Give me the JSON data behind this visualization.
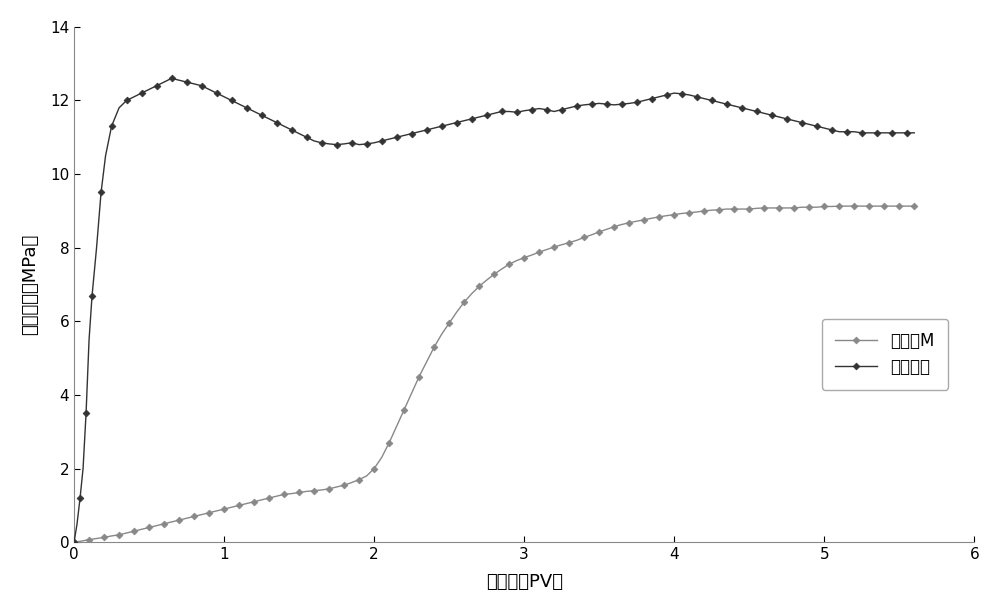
{
  "series1_label": "注菌种M",
  "series2_label": "后续水驱",
  "xlabel": "注入量（PV）",
  "ylabel": "注入压力（MPa）",
  "xlim": [
    0,
    6
  ],
  "ylim": [
    0,
    14
  ],
  "xticks": [
    0,
    1,
    2,
    3,
    4,
    5,
    6
  ],
  "yticks": [
    0,
    2,
    4,
    6,
    8,
    10,
    12,
    14
  ],
  "series1_color": "#888888",
  "series2_color": "#333333",
  "series1_x": [
    0.0,
    0.05,
    0.1,
    0.15,
    0.2,
    0.25,
    0.3,
    0.35,
    0.4,
    0.45,
    0.5,
    0.55,
    0.6,
    0.65,
    0.7,
    0.75,
    0.8,
    0.85,
    0.9,
    0.95,
    1.0,
    1.05,
    1.1,
    1.15,
    1.2,
    1.25,
    1.3,
    1.35,
    1.4,
    1.45,
    1.5,
    1.55,
    1.6,
    1.65,
    1.7,
    1.75,
    1.8,
    1.85,
    1.9,
    1.95,
    2.0,
    2.05,
    2.1,
    2.15,
    2.2,
    2.25,
    2.3,
    2.35,
    2.4,
    2.45,
    2.5,
    2.55,
    2.6,
    2.65,
    2.7,
    2.75,
    2.8,
    2.85,
    2.9,
    2.95,
    3.0,
    3.05,
    3.1,
    3.15,
    3.2,
    3.25,
    3.3,
    3.35,
    3.4,
    3.45,
    3.5,
    3.55,
    3.6,
    3.65,
    3.7,
    3.75,
    3.8,
    3.85,
    3.9,
    3.95,
    4.0,
    4.05,
    4.1,
    4.15,
    4.2,
    4.25,
    4.3,
    4.35,
    4.4,
    4.45,
    4.5,
    4.55,
    4.6,
    4.65,
    4.7,
    4.75,
    4.8,
    4.85,
    4.9,
    4.95,
    5.0,
    5.05,
    5.1,
    5.15,
    5.2,
    5.25,
    5.3,
    5.35,
    5.4,
    5.45,
    5.5,
    5.55,
    5.6
  ],
  "series1_y": [
    0.0,
    0.03,
    0.07,
    0.1,
    0.13,
    0.17,
    0.2,
    0.25,
    0.3,
    0.35,
    0.4,
    0.45,
    0.5,
    0.55,
    0.6,
    0.65,
    0.7,
    0.75,
    0.8,
    0.85,
    0.9,
    0.95,
    1.0,
    1.05,
    1.1,
    1.15,
    1.2,
    1.25,
    1.3,
    1.32,
    1.35,
    1.38,
    1.4,
    1.42,
    1.45,
    1.5,
    1.55,
    1.62,
    1.7,
    1.8,
    2.0,
    2.3,
    2.7,
    3.15,
    3.6,
    4.05,
    4.5,
    4.9,
    5.3,
    5.65,
    5.95,
    6.25,
    6.52,
    6.75,
    6.95,
    7.12,
    7.28,
    7.42,
    7.55,
    7.65,
    7.73,
    7.8,
    7.88,
    7.95,
    8.02,
    8.08,
    8.14,
    8.2,
    8.28,
    8.35,
    8.43,
    8.5,
    8.57,
    8.63,
    8.68,
    8.72,
    8.76,
    8.8,
    8.84,
    8.87,
    8.9,
    8.93,
    8.95,
    8.97,
    9.0,
    9.02,
    9.03,
    9.05,
    9.05,
    9.05,
    9.05,
    9.07,
    9.08,
    9.08,
    9.08,
    9.08,
    9.08,
    9.1,
    9.1,
    9.1,
    9.12,
    9.12,
    9.13,
    9.13,
    9.13,
    9.13,
    9.13,
    9.13,
    9.13,
    9.13,
    9.13,
    9.13,
    9.13
  ],
  "series2_x": [
    0.0,
    0.02,
    0.04,
    0.06,
    0.08,
    0.1,
    0.12,
    0.15,
    0.18,
    0.21,
    0.25,
    0.3,
    0.35,
    0.4,
    0.45,
    0.5,
    0.55,
    0.6,
    0.65,
    0.7,
    0.75,
    0.8,
    0.85,
    0.9,
    0.95,
    1.0,
    1.05,
    1.1,
    1.15,
    1.2,
    1.25,
    1.3,
    1.35,
    1.4,
    1.45,
    1.5,
    1.55,
    1.6,
    1.65,
    1.7,
    1.75,
    1.8,
    1.85,
    1.9,
    1.95,
    2.0,
    2.05,
    2.1,
    2.15,
    2.2,
    2.25,
    2.3,
    2.35,
    2.4,
    2.45,
    2.5,
    2.55,
    2.6,
    2.65,
    2.7,
    2.75,
    2.8,
    2.85,
    2.9,
    2.95,
    3.0,
    3.05,
    3.1,
    3.15,
    3.2,
    3.25,
    3.3,
    3.35,
    3.4,
    3.45,
    3.5,
    3.55,
    3.6,
    3.65,
    3.7,
    3.75,
    3.8,
    3.85,
    3.9,
    3.95,
    4.0,
    4.05,
    4.1,
    4.15,
    4.2,
    4.25,
    4.3,
    4.35,
    4.4,
    4.45,
    4.5,
    4.55,
    4.6,
    4.65,
    4.7,
    4.75,
    4.8,
    4.85,
    4.9,
    4.95,
    5.0,
    5.05,
    5.1,
    5.15,
    5.2,
    5.25,
    5.3,
    5.35,
    5.4,
    5.45,
    5.5,
    5.55,
    5.6
  ],
  "series2_y": [
    0.0,
    0.5,
    1.2,
    2.0,
    3.5,
    5.5,
    6.7,
    8.0,
    9.5,
    10.5,
    11.3,
    11.8,
    12.0,
    12.1,
    12.2,
    12.3,
    12.4,
    12.5,
    12.6,
    12.55,
    12.5,
    12.45,
    12.4,
    12.3,
    12.2,
    12.1,
    12.0,
    11.9,
    11.8,
    11.7,
    11.6,
    11.5,
    11.4,
    11.3,
    11.2,
    11.1,
    11.0,
    10.9,
    10.85,
    10.82,
    10.8,
    10.82,
    10.85,
    10.8,
    10.82,
    10.85,
    10.9,
    10.95,
    11.0,
    11.05,
    11.1,
    11.15,
    11.2,
    11.25,
    11.3,
    11.35,
    11.4,
    11.45,
    11.5,
    11.55,
    11.6,
    11.65,
    11.7,
    11.7,
    11.68,
    11.72,
    11.75,
    11.78,
    11.75,
    11.7,
    11.75,
    11.8,
    11.85,
    11.88,
    11.9,
    11.92,
    11.9,
    11.88,
    11.9,
    11.92,
    11.95,
    12.0,
    12.05,
    12.1,
    12.15,
    12.2,
    12.18,
    12.15,
    12.1,
    12.05,
    12.0,
    11.95,
    11.9,
    11.85,
    11.8,
    11.75,
    11.7,
    11.65,
    11.6,
    11.55,
    11.5,
    11.45,
    11.4,
    11.35,
    11.3,
    11.25,
    11.2,
    11.15,
    11.15,
    11.15,
    11.12,
    11.12,
    11.12,
    11.12,
    11.12,
    11.12,
    11.12,
    11.12
  ]
}
